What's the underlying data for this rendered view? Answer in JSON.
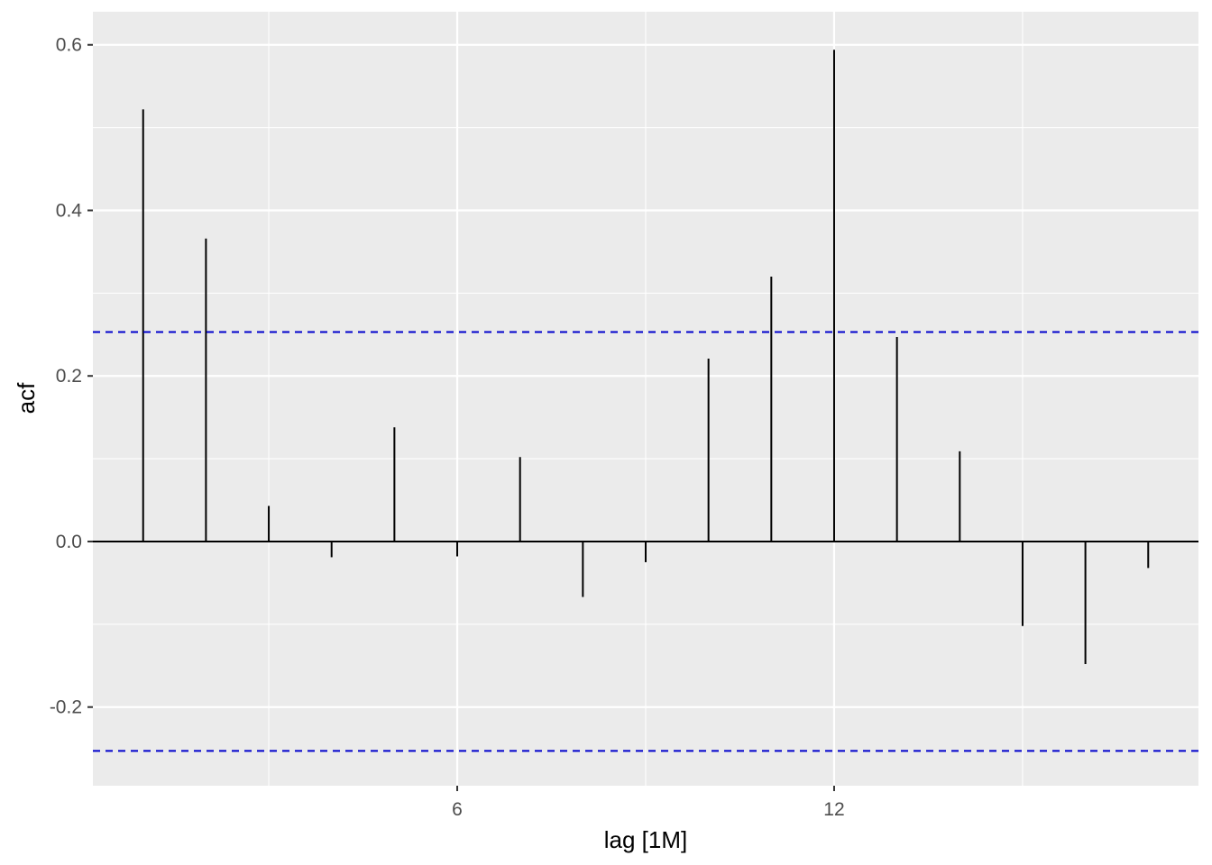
{
  "chart_data": {
    "type": "bar",
    "subtype": "acf",
    "title": "",
    "xlabel": "lag [1M]",
    "ylabel": "acf",
    "x": [
      1,
      2,
      3,
      4,
      5,
      6,
      7,
      8,
      9,
      10,
      11,
      12,
      13,
      14,
      15,
      16,
      17
    ],
    "values": [
      0.522,
      0.366,
      0.043,
      -0.019,
      0.138,
      -0.018,
      0.102,
      -0.067,
      -0.025,
      0.221,
      0.32,
      0.594,
      0.247,
      0.109,
      -0.102,
      -0.148,
      -0.032
    ],
    "xlim": [
      0.2,
      17.8
    ],
    "ylim": [
      -0.295,
      0.64
    ],
    "x_ticks": [
      6,
      12
    ],
    "x_tick_labels": [
      "6",
      "12"
    ],
    "y_ticks": [
      -0.2,
      0.0,
      0.2,
      0.4,
      0.6
    ],
    "y_tick_labels": [
      "-0.2",
      "0.0",
      "0.2",
      "0.4",
      "0.6"
    ],
    "confidence_bound": 0.253,
    "grid": true,
    "legend": "none",
    "colors": {
      "panel": "#ebebeb",
      "grid": "#ffffff",
      "bar": "#000000",
      "bound": "#0000cc",
      "tick_text": "#4d4d4d",
      "axis_title": "#000000"
    }
  }
}
